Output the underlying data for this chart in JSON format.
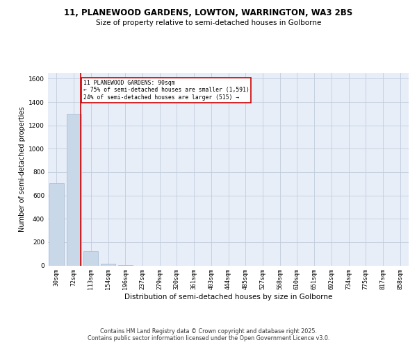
{
  "title": "11, PLANEWOOD GARDENS, LOWTON, WARRINGTON, WA3 2BS",
  "subtitle": "Size of property relative to semi-detached houses in Golborne",
  "xlabel": "Distribution of semi-detached houses by size in Golborne",
  "ylabel": "Number of semi-detached properties",
  "categories": [
    "30sqm",
    "72sqm",
    "113sqm",
    "154sqm",
    "196sqm",
    "237sqm",
    "279sqm",
    "320sqm",
    "361sqm",
    "403sqm",
    "444sqm",
    "485sqm",
    "527sqm",
    "568sqm",
    "610sqm",
    "651sqm",
    "692sqm",
    "734sqm",
    "775sqm",
    "817sqm",
    "858sqm"
  ],
  "values": [
    706,
    1300,
    120,
    15,
    2,
    0,
    0,
    0,
    0,
    0,
    0,
    0,
    0,
    0,
    0,
    0,
    0,
    0,
    0,
    0,
    0
  ],
  "bar_color": "#c8d8e8",
  "bar_edge_color": "#a0b8d0",
  "property_size": "90sqm",
  "pct_smaller": 75,
  "count_smaller": 1591,
  "pct_larger": 24,
  "count_larger": 515,
  "annotation_box_color": "#cc0000",
  "red_line_x": 1.42,
  "ylim": [
    0,
    1650
  ],
  "yticks": [
    0,
    200,
    400,
    600,
    800,
    1000,
    1200,
    1400,
    1600
  ],
  "grid_color": "#c0ccdd",
  "bg_color": "#e8eef8",
  "footer": "Contains HM Land Registry data © Crown copyright and database right 2025.\nContains public sector information licensed under the Open Government Licence v3.0.",
  "title_fontsize": 8.5,
  "subtitle_fontsize": 7.5,
  "tick_fontsize": 6,
  "ylabel_fontsize": 7,
  "xlabel_fontsize": 7.5,
  "ann_fontsize": 5.8
}
